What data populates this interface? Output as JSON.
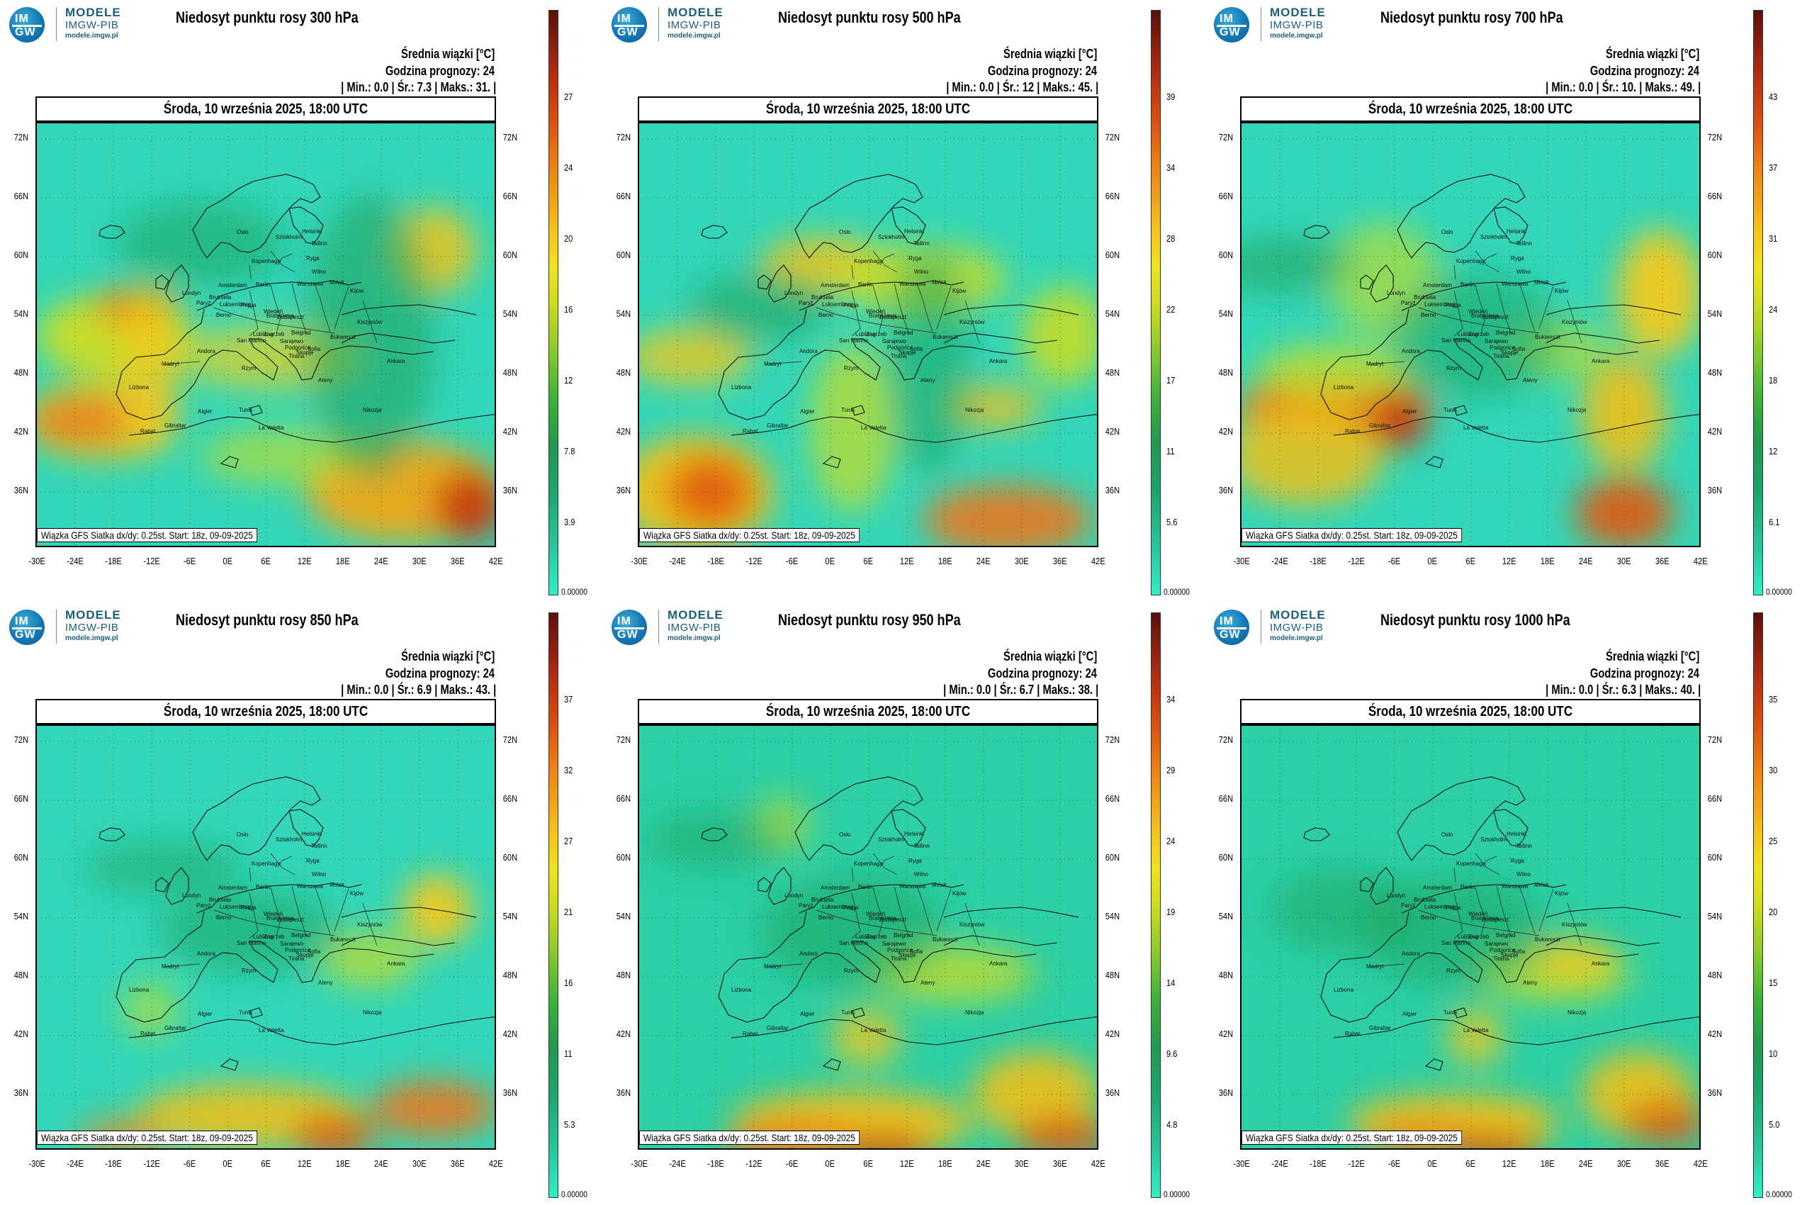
{
  "logo": {
    "line1": "MODELE",
    "line2": "IMGW-PIB",
    "line3": "modele.imgw.pl",
    "badge_top": "IM",
    "badge_bottom": "GW"
  },
  "common": {
    "avg_label": "Średnia wiązki [°C]",
    "forecast_label": "Godzina prognozy: 24",
    "date": "Środa, 10 września 2025, 18:00 UTC",
    "credit": "Wiązka GFS Siatka dx/dy: 0.25st. Start: 18z, 09-09-2025",
    "lat_labels": [
      "72N",
      "66N",
      "60N",
      "54N",
      "48N",
      "42N",
      "36N"
    ],
    "lon_labels": [
      "-30E",
      "-24E",
      "-18E",
      "-12E",
      "-6E",
      "0E",
      "6E",
      "12E",
      "18E",
      "24E",
      "30E",
      "36E",
      "42E"
    ],
    "colorbar_zero": "0.00000",
    "city_labels": [
      "Oslo",
      "Sztokholm",
      "Helsinki",
      "Tallinn",
      "Ryga",
      "Kopenhaga",
      "Wilno",
      "Amsterdam",
      "Berlin",
      "Warszawa",
      "Mińsk",
      "Londyn",
      "Bruksela",
      "Paryż",
      "Luksemburg",
      "Praga",
      "Wiedeń",
      "Berno",
      "Bratysława",
      "Budapeszt",
      "Kijów",
      "Kiszyniów",
      "Lublana",
      "Zagrzeb",
      "San Marino",
      "Sarajewo",
      "Belgrad",
      "Bukareszt",
      "Andora",
      "Madryt",
      "Rzym",
      "Podgorica",
      "Sofia",
      "Tirana",
      "Skopje",
      "Lizbona",
      "Ankara",
      "Ateny",
      "Algier",
      "Tunis",
      "Gibraltar",
      "Rabat",
      "La Valetta",
      "Nikozja"
    ]
  },
  "panels": [
    {
      "title": "Niedosyt punktu rosy 300 hPa",
      "stats": "| Min.: 0.0 | Śr.: 7.3 | Maks.: 31. |",
      "colorbar_ticks": [
        "27",
        "24",
        "20",
        "16",
        "12",
        "7.8",
        "3.9"
      ]
    },
    {
      "title": "Niedosyt punktu rosy 500 hPa",
      "stats": "| Min.: 0.0 | Śr.: 12 | Maks.: 45. |",
      "colorbar_ticks": [
        "39",
        "34",
        "28",
        "22",
        "17",
        "11",
        "5.6"
      ]
    },
    {
      "title": "Niedosyt punktu rosy 700 hPa",
      "stats": "| Min.: 0.0 | Śr.: 10. | Maks.: 49. |",
      "colorbar_ticks": [
        "43",
        "37",
        "31",
        "24",
        "18",
        "12",
        "6.1"
      ]
    },
    {
      "title": "Niedosyt punktu rosy 850 hPa",
      "stats": "| Min.: 0.0 | Śr.: 6.9 | Maks.: 43. |",
      "colorbar_ticks": [
        "37",
        "32",
        "27",
        "21",
        "16",
        "11",
        "5.3"
      ]
    },
    {
      "title": "Niedosyt punktu rosy 950 hPa",
      "stats": "| Min.: 0.0 | Śr.: 6.7 | Maks.: 38. |",
      "colorbar_ticks": [
        "34",
        "29",
        "24",
        "19",
        "14",
        "9.6",
        "4.8"
      ]
    },
    {
      "title": "Niedosyt punktu rosy 1000 hPa",
      "stats": "| Min.: 0.0 | Śr.: 6.3 | Maks.: 40. |",
      "colorbar_ticks": [
        "35",
        "30",
        "25",
        "20",
        "15",
        "10",
        "5.0"
      ]
    }
  ]
}
